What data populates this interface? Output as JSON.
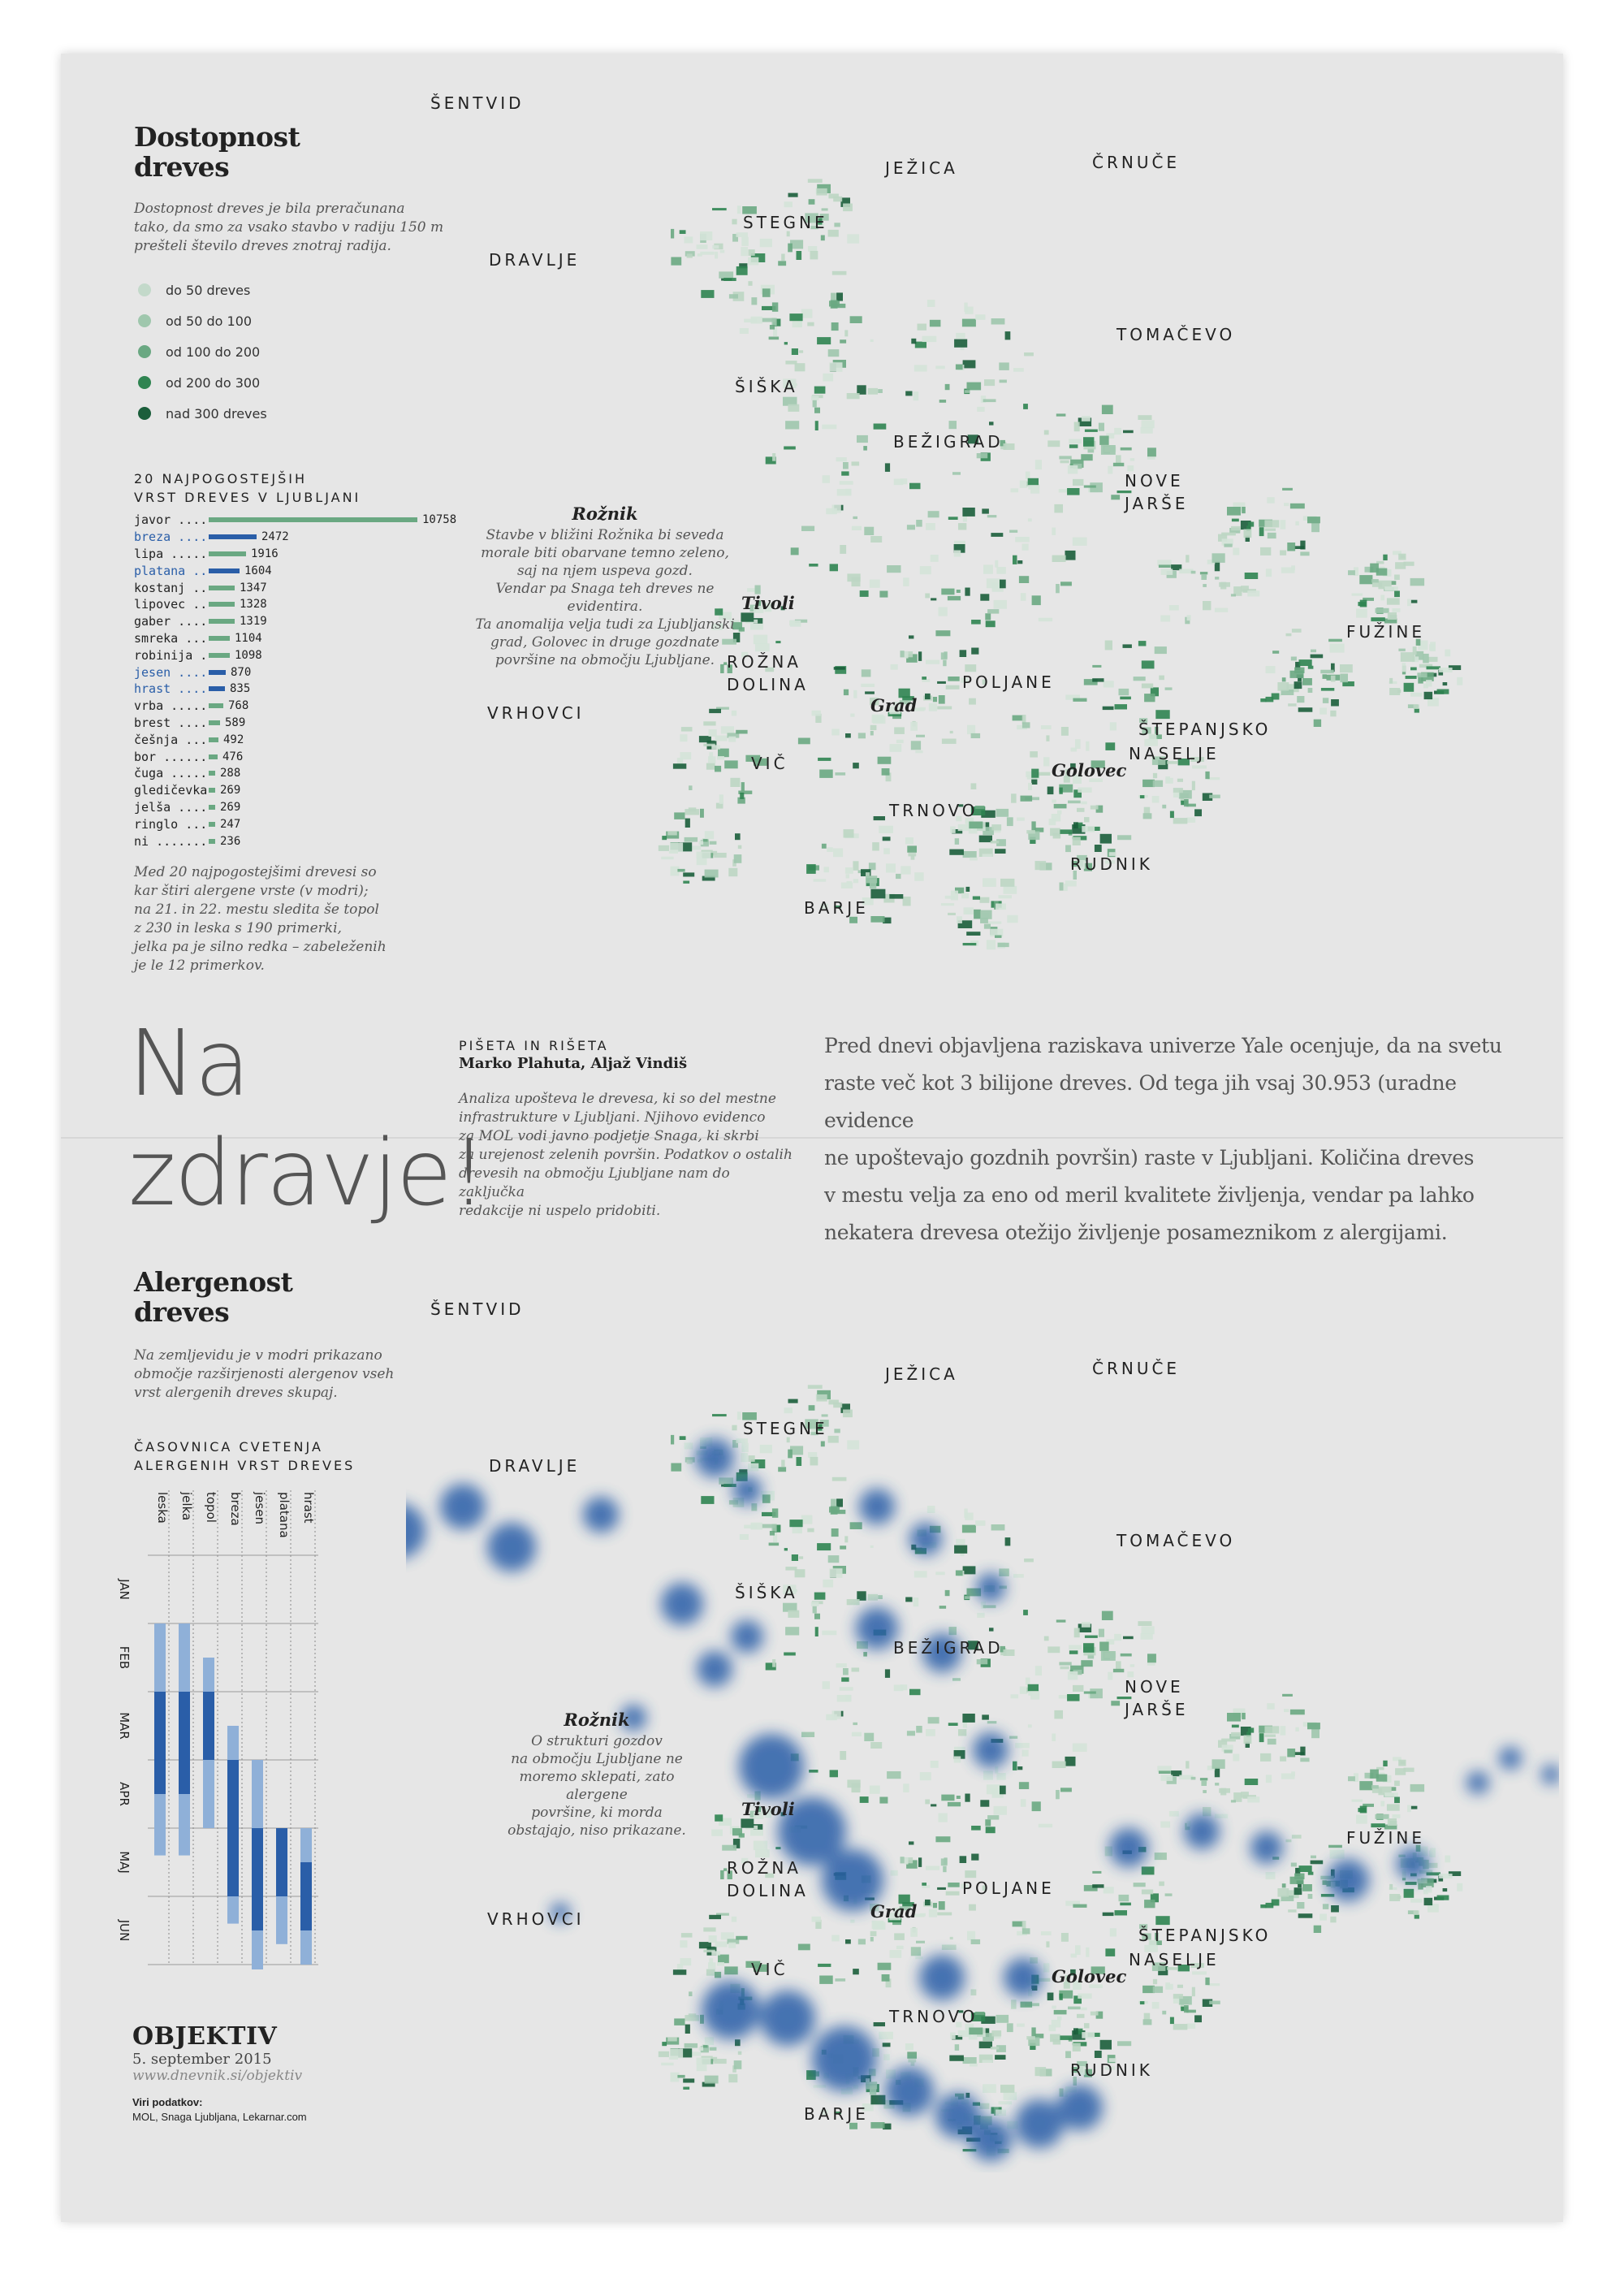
{
  "colors": {
    "blue": "#2a5ea8",
    "green": "#6aa882",
    "dark_green": "#1b5e3b"
  },
  "top_panel": {
    "title_line1": "Dostopnost",
    "title_line2": "dreves",
    "intro_lines": [
      "Dostopnost dreves je bila preračunana",
      "tako, da smo za vsako stavbo v radiju 150 m",
      "prešteli število dreves znotraj radija."
    ],
    "legend": [
      {
        "label": "do 50 dreves",
        "color": "#c3d9ca"
      },
      {
        "label": "od 50 do 100",
        "color": "#9fc7ad"
      },
      {
        "label": "od 100 do 200",
        "color": "#6aa882"
      },
      {
        "label": "od 200 do 300",
        "color": "#2f8451"
      },
      {
        "label": "nad 300 dreves",
        "color": "#1b5e3b"
      }
    ],
    "trees_title_line1": "20 NAJPOGOSTEJŠIH",
    "trees_title_line2": "VRST DREVES V LJUBLJANI",
    "trees": [
      {
        "name": "javor",
        "value": 10758,
        "allergen": false
      },
      {
        "name": "breza",
        "value": 2472,
        "allergen": true
      },
      {
        "name": "lipa",
        "value": 1916,
        "allergen": false
      },
      {
        "name": "platana",
        "value": 1604,
        "allergen": true
      },
      {
        "name": "kostanj",
        "value": 1347,
        "allergen": false
      },
      {
        "name": "lipovec",
        "value": 1328,
        "allergen": false
      },
      {
        "name": "gaber",
        "value": 1319,
        "allergen": false
      },
      {
        "name": "smreka",
        "value": 1104,
        "allergen": false
      },
      {
        "name": "robinija",
        "value": 1098,
        "allergen": false
      },
      {
        "name": "jesen",
        "value": 870,
        "allergen": true
      },
      {
        "name": "hrast",
        "value": 835,
        "allergen": true
      },
      {
        "name": "vrba",
        "value": 768,
        "allergen": false
      },
      {
        "name": "brest",
        "value": 589,
        "allergen": false
      },
      {
        "name": "češnja",
        "value": 492,
        "allergen": false
      },
      {
        "name": "bor",
        "value": 476,
        "allergen": false
      },
      {
        "name": "čuga",
        "value": 288,
        "allergen": false
      },
      {
        "name": "gledičevka",
        "value": 269,
        "allergen": false
      },
      {
        "name": "jelša",
        "value": 269,
        "allergen": false
      },
      {
        "name": "ringlo",
        "value": 247,
        "allergen": false
      },
      {
        "name": "ni",
        "value": 236,
        "allergen": false
      }
    ],
    "trees_footnote_lines": [
      "Med 20 najpogostejšimi drevesi so",
      "kar štiri alergene vrste (v modri);",
      "na 21. in 22. mestu sledita še topol",
      "z 230 in leska s 190 primerki,",
      "jelka pa je silno redka – zabeleženih",
      "je le 12 primerkov."
    ],
    "map_note_title": "Rožnik",
    "map_note_lines": [
      "Stavbe v bližini Rožnika bi seveda",
      "morale biti obarvane temno zeleno,",
      "saj na njem uspeva gozd.",
      "Vendar pa Snaga teh dreves ne evidentira.",
      "Ta anomalija velja tudi za Ljubljanski",
      "grad, Golovec in druge gozdnate",
      "površine na območju Ljubljane."
    ]
  },
  "map_places": [
    "ŠENTVID",
    "JEŽICA",
    "ČRNUČE",
    "STEGNE",
    "DRAVLJE",
    "TOMAČEVO",
    "ŠIŠKA",
    "BEŽIGRAD",
    "NOVE",
    "JARŠE",
    "FUŽINE",
    "ROŽNA",
    "DOLINA",
    "POLJANE",
    "VRHOVCI",
    "ŠTEPANJSKO",
    "NASELJE",
    "VIČ",
    "TRNOVO",
    "RUDNIK",
    "BARJE"
  ],
  "map_landmarks": [
    "Tivoli",
    "Grad",
    "Golovec"
  ],
  "middle": {
    "headline_line1": "Na",
    "headline_line2": "zdravje!",
    "byline_label": "PIŠETA IN RIŠETA",
    "authors": "Marko Plahuta, Aljaž Vindiš",
    "method_lines": [
      "Analiza upošteva le drevesa, ki so del mestne",
      "infrastrukture v Ljubljani. Njihovo evidenco",
      "za MOL vodi javno podjetje Snaga, ki skrbi",
      "za urejenost zelenih površin. Podatkov o ostalih",
      "drevesih na območju Ljubljane nam do zaključka",
      "redakcije ni uspelo pridobiti."
    ],
    "lede_lines": [
      "Pred dnevi objavljena raziskava univerze Yale ocenjuje, da na svetu",
      "raste več kot 3 bilijone dreves. Od tega jih vsaj 30.953 (uradne evidence",
      "ne upoštevajo gozdnih površin) raste v Ljubljani. Količina dreves",
      "v mestu velja za eno od meril kvalitete življenja, vendar pa lahko",
      "nekatera drevesa otežijo življenje posameznikom z alergijami."
    ]
  },
  "bottom_panel": {
    "title_line1": "Alergenost",
    "title_line2": "dreves",
    "intro_lines": [
      "Na zemljevidu je v modri prikazano",
      "območje razširjenosti alergenov vseh",
      "vrst alergenih dreves skupaj."
    ],
    "timeline_title_line1": "ČASOVNICA CVETENJA",
    "timeline_title_line2": "ALERGENIH VRST DREVES",
    "species": [
      "leska",
      "jelka",
      "topol",
      "breza",
      "jesen",
      "platana",
      "hrast"
    ],
    "months": [
      "JAN",
      "FEB",
      "MAR",
      "APR",
      "MAJ",
      "JUN"
    ],
    "bloom": [
      {
        "light": [
          1.0,
          4.4
        ],
        "dark": [
          2.0,
          3.5
        ]
      },
      {
        "light": [
          1.0,
          4.4
        ],
        "dark": [
          2.0,
          3.5
        ]
      },
      {
        "light": [
          1.5,
          4.0
        ],
        "dark": [
          2.0,
          3.0
        ]
      },
      {
        "light": [
          2.5,
          5.4
        ],
        "dark": [
          3.0,
          5.0
        ]
      },
      {
        "light": [
          3.0,
          6.4
        ],
        "dark": [
          4.0,
          5.5
        ]
      },
      {
        "light": [
          4.0,
          5.7
        ],
        "dark": [
          4.0,
          5.0
        ]
      },
      {
        "light": [
          4.0,
          6.0
        ],
        "dark": [
          4.5,
          5.5
        ]
      }
    ],
    "map_note_title": "Rožnik",
    "map_note_lines": [
      "O strukturi gozdov",
      "na območju Ljubljane ne",
      "moremo sklepati, zato alergene",
      "površine, ki morda",
      "obstajajo, niso prikazane."
    ]
  },
  "footer": {
    "brand": "OBJEKTIV",
    "date": "5. september 2015",
    "url": "www.dnevnik.si/objektiv",
    "sources_label": "Viri podatkov:",
    "sources": "MOL, Snaga Ljubljana, Lekarnar.com"
  }
}
